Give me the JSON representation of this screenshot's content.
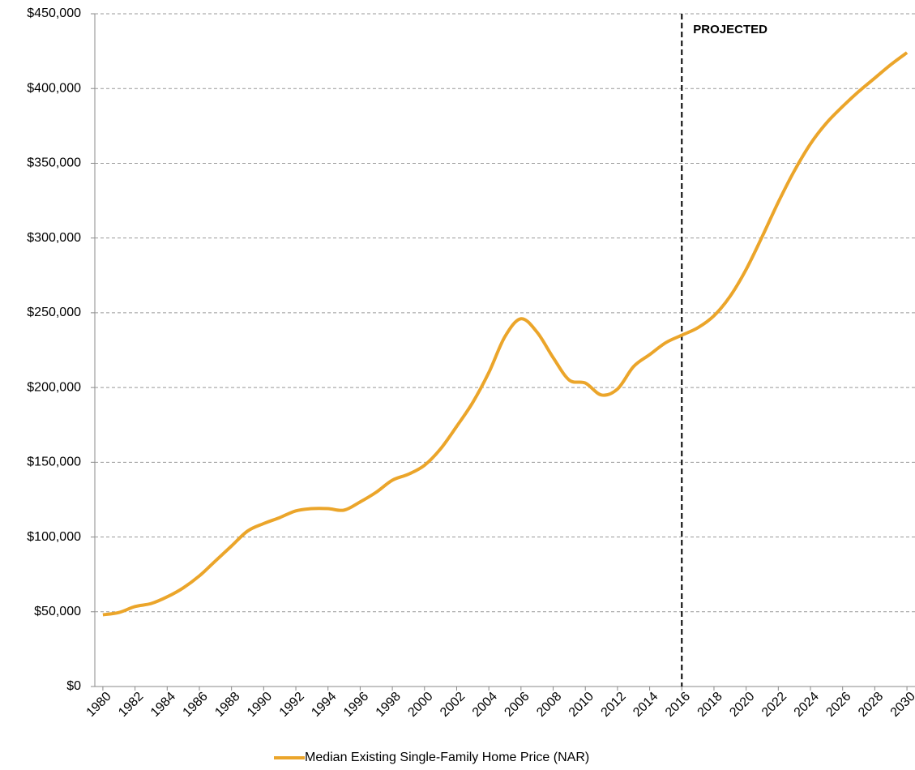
{
  "chart_data": {
    "type": "line",
    "x": [
      1980,
      1981,
      1982,
      1983,
      1984,
      1985,
      1986,
      1987,
      1988,
      1989,
      1990,
      1991,
      1992,
      1993,
      1994,
      1995,
      1996,
      1997,
      1998,
      1999,
      2000,
      2001,
      2002,
      2003,
      2004,
      2005,
      2006,
      2007,
      2008,
      2009,
      2010,
      2011,
      2012,
      2013,
      2014,
      2015,
      2016,
      2017,
      2018,
      2019,
      2020,
      2021,
      2022,
      2023,
      2024,
      2025,
      2026,
      2027,
      2028,
      2029,
      2030
    ],
    "series": [
      {
        "name": "Median Existing Single-Family Home Price (NAR)",
        "color": "#eba52a",
        "values": [
          48000,
          49500,
          53500,
          55500,
          60000,
          66000,
          74000,
          84000,
          94000,
          104000,
          109000,
          113000,
          117500,
          119000,
          119000,
          118000,
          123500,
          130000,
          138000,
          142000,
          148000,
          159000,
          174000,
          190000,
          210000,
          234000,
          246000,
          237000,
          220000,
          205000,
          203000,
          195000,
          199000,
          214000,
          222000,
          230000,
          235000,
          240000,
          248000,
          261000,
          279000,
          301000,
          324000,
          345000,
          363000,
          377000,
          388000,
          398000,
          407000,
          416000,
          424000
        ]
      }
    ],
    "xlim": [
      1979.5,
      2030.5
    ],
    "xticks": [
      1980,
      1982,
      1984,
      1986,
      1988,
      1990,
      1992,
      1994,
      1996,
      1998,
      2000,
      2002,
      2004,
      2006,
      2008,
      2010,
      2012,
      2014,
      2016,
      2018,
      2020,
      2022,
      2024,
      2026,
      2028,
      2030
    ],
    "ylim": [
      0,
      450000
    ],
    "yticks": [
      {
        "value": 0,
        "label": "$0"
      },
      {
        "value": 50000,
        "label": "$50,000"
      },
      {
        "value": 100000,
        "label": "$100,000"
      },
      {
        "value": 150000,
        "label": "$150,000"
      },
      {
        "value": 200000,
        "label": "$200,000"
      },
      {
        "value": 250000,
        "label": "$250,000"
      },
      {
        "value": 300000,
        "label": "$300,000"
      },
      {
        "value": 350000,
        "label": "$350,000"
      },
      {
        "value": 400000,
        "label": "$400,000"
      },
      {
        "value": 450000,
        "label": "$450,000"
      }
    ],
    "grid": true,
    "projection_start": 2016,
    "annotation": "PROJECTED",
    "legend": "bottom"
  }
}
